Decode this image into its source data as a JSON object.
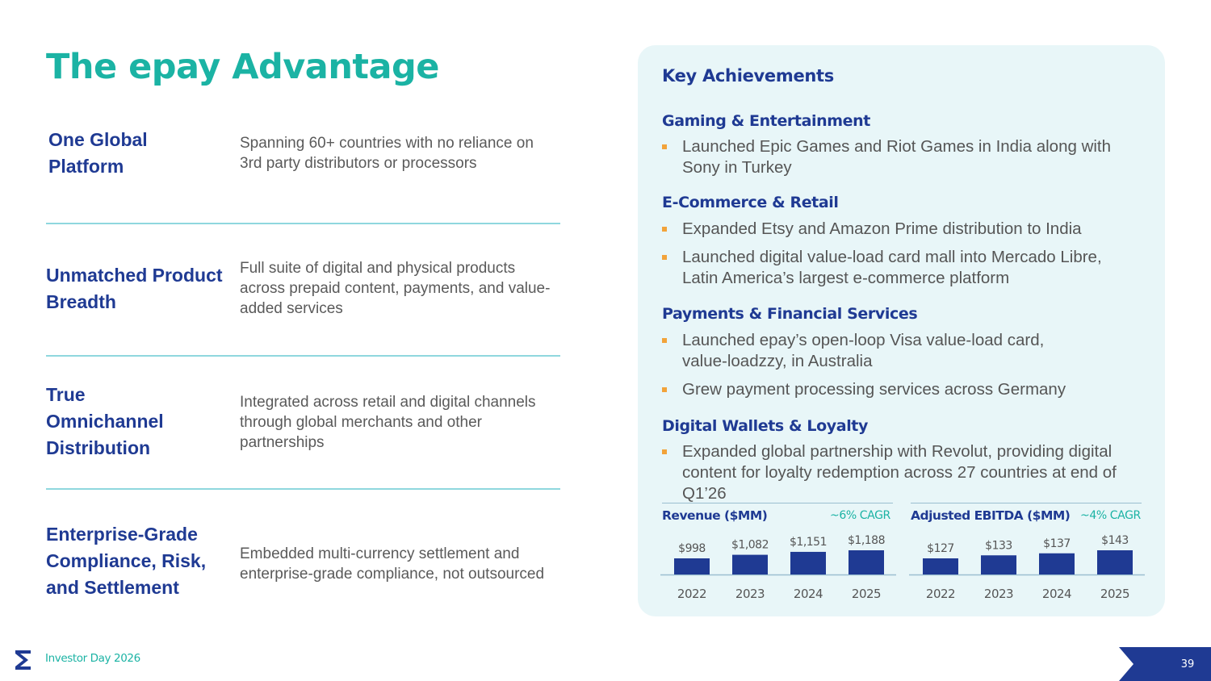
{
  "slide": {
    "title": "The epay Advantage",
    "footer": "Investor Day 2026",
    "page_number": "39"
  },
  "advantages": [
    {
      "title": "One Global Platform",
      "description": "Spanning 60+ countries with no reliance on 3rd party distributors or processors"
    },
    {
      "title": "Unmatched Product Breadth",
      "description": "Full suite of digital and physical products across prepaid content, payments, and value-added services"
    },
    {
      "title": "True Omnichannel Distribution",
      "description": "Integrated across retail and digital channels through global merchants and other partnerships"
    },
    {
      "title": "Enterprise-Grade Compliance, Risk, and Settlement",
      "description": "Embedded multi-currency settlement and enterprise-grade compliance, not outsourced"
    }
  ],
  "achievements": {
    "title": "Key Achievements",
    "categories": [
      {
        "heading": "Gaming & Entertainment",
        "bullets": [
          "Launched Epic Games and Riot Games in India along with Sony in Turkey"
        ]
      },
      {
        "heading": "E-Commerce & Retail",
        "bullets": [
          "Expanded Etsy and Amazon Prime distribution to India",
          "Launched digital value-load card mall into Mercado Libre, Latin America’s largest e-commerce platform"
        ]
      },
      {
        "heading": "Payments & Financial Services",
        "bullets": [
          "Launched epay’s open-loop Visa value-load card, value-loadzzy, in Australia",
          "Grew payment processing services across Germany"
        ]
      },
      {
        "heading": "Digital Wallets & Loyalty",
        "bullets": [
          "Expanded global partnership with Revolut, providing digital content for loyalty redemption across 27 countries at end of Q1’26"
        ]
      }
    ]
  },
  "chart_data": [
    {
      "type": "bar",
      "title": "Revenue ($MM)",
      "annotation": "~6% CAGR",
      "categories": [
        "2022",
        "2023",
        "2024",
        "2025"
      ],
      "values": [
        998,
        1082,
        1151,
        1188
      ],
      "labels": [
        "$998",
        "$1,082",
        "$1,151",
        "$1,188"
      ],
      "bar_color": "#1f3a93"
    },
    {
      "type": "bar",
      "title": "Adjusted EBITDA ($MM)",
      "annotation": "~4% CAGR",
      "categories": [
        "2022",
        "2023",
        "2024",
        "2025"
      ],
      "values": [
        127,
        133,
        137,
        143
      ],
      "labels": [
        "$127",
        "$133",
        "$137",
        "$143"
      ],
      "bar_color": "#1f3a93"
    }
  ],
  "colors": {
    "teal": "#1bb3a4",
    "navy": "#1f3a93",
    "bullet": "#f2a33a",
    "panel": "#e8f6f8"
  }
}
